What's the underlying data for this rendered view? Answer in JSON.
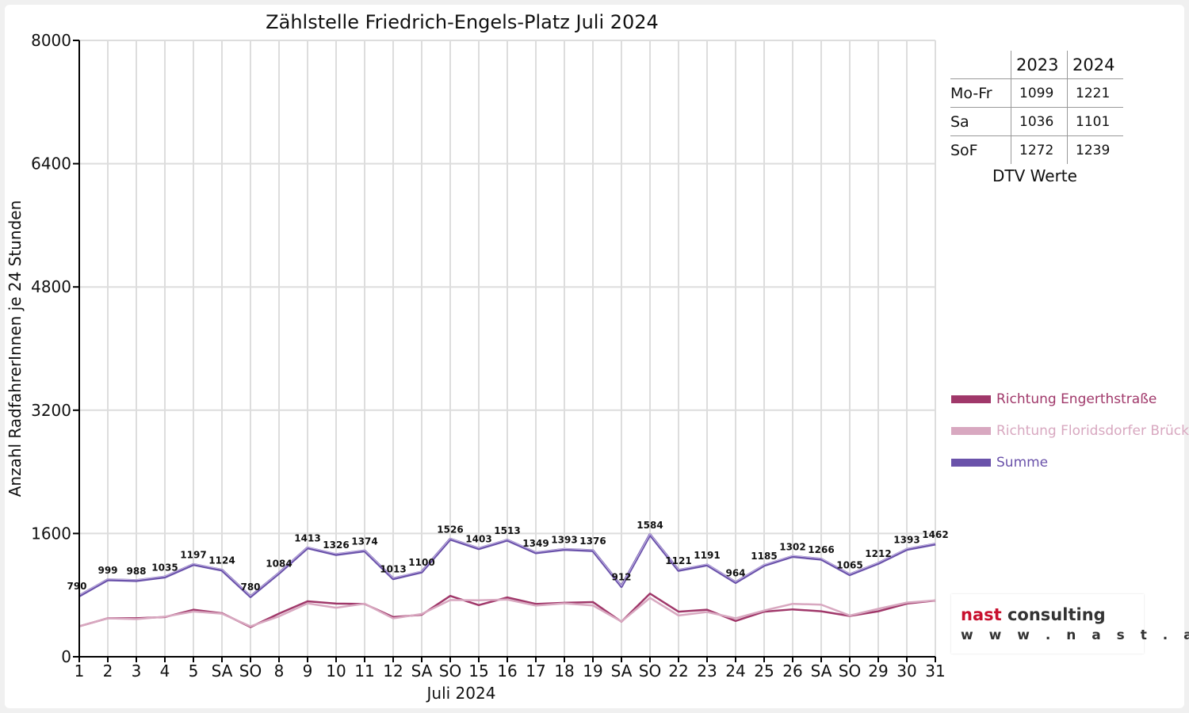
{
  "chart_data": {
    "type": "line",
    "title": "Zählstelle Friedrich-Engels-Platz Juli 2024",
    "xlabel": "Juli 2024",
    "ylabel": "Anzahl RadfahrerInnen je 24 Stunden",
    "ylim": [
      0,
      8000
    ],
    "yticks": [
      "0",
      "1600",
      "3200",
      "4800",
      "6400",
      "8000"
    ],
    "grid": true,
    "legend_position": "right",
    "categories": [
      "1",
      "2",
      "3",
      "4",
      "5",
      "SA",
      "SO",
      "8",
      "9",
      "10",
      "11",
      "12",
      "SA",
      "SO",
      "15",
      "16",
      "17",
      "18",
      "19",
      "SA",
      "SO",
      "22",
      "23",
      "24",
      "25",
      "26",
      "SA",
      "SO",
      "29",
      "30",
      "31"
    ],
    "sunday_indices": [
      6,
      13,
      20,
      27
    ],
    "series": [
      {
        "name": "Richtung Engerthstraße",
        "color": "#a0386a",
        "values": [
          395,
          500,
          500,
          515,
          610,
          565,
          385,
          560,
          720,
          690,
          685,
          515,
          545,
          790,
          670,
          770,
          685,
          700,
          710,
          455,
          820,
          585,
          610,
          465,
          585,
          615,
          590,
          530,
          590,
          690,
          730
        ]
      },
      {
        "name": "Richtung Floridsdorfer Brücke",
        "color": "#d8a8c0",
        "values": [
          395,
          499,
          488,
          520,
          587,
          559,
          395,
          524,
          693,
          636,
          689,
          498,
          555,
          736,
          733,
          743,
          664,
          693,
          666,
          457,
          764,
          536,
          581,
          499,
          600,
          687,
          676,
          535,
          622,
          703,
          732
        ]
      },
      {
        "name": "Summe",
        "color": "#6a52aa",
        "values": [
          790,
          999,
          988,
          1035,
          1197,
          1124,
          780,
          1084,
          1413,
          1326,
          1374,
          1013,
          1100,
          1526,
          1403,
          1513,
          1349,
          1393,
          1376,
          912,
          1584,
          1121,
          1191,
          964,
          1185,
          1302,
          1266,
          1065,
          1212,
          1393,
          1462
        ]
      }
    ],
    "data_labels": [
      "790",
      "999",
      "988",
      "1035",
      "1197",
      "1124",
      "780",
      "1084",
      "1413",
      "1326",
      "1374",
      "1013",
      "1100",
      "1526",
      "1403",
      "1513",
      "1349",
      "1393",
      "1376",
      "912",
      "1584",
      "1121",
      "1191",
      "964",
      "1185",
      "1302",
      "1266",
      "1065",
      "1212",
      "1393",
      "1462"
    ]
  },
  "dtv_table": {
    "years": [
      "2023",
      "2024"
    ],
    "rows": [
      {
        "label": "Mo-Fr",
        "v2023": "1099",
        "v2024": "1221"
      },
      {
        "label": "Sa",
        "v2023": "1036",
        "v2024": "1101"
      },
      {
        "label": "SoF",
        "v2023": "1272",
        "v2024": "1239"
      }
    ],
    "caption": "DTV Werte"
  },
  "logo": {
    "name_part1": "nast",
    "name_part2": "consulting",
    "url": "w w w . n a s t . a t"
  },
  "colors": {
    "sunday_label": "#e00000",
    "grid": "#dddddd",
    "logo_red": "#c8102e"
  }
}
